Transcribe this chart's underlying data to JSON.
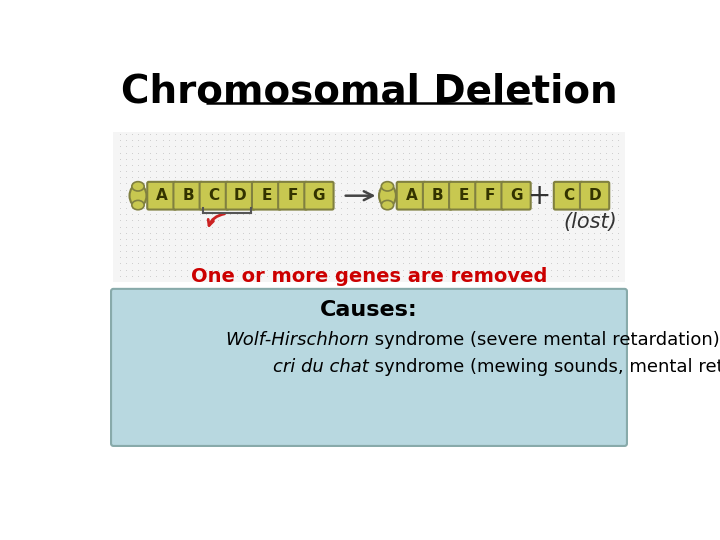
{
  "title": "Chromosomal Deletion",
  "title_fontsize": 28,
  "title_color": "#000000",
  "background_color": "#ffffff",
  "gene_fill": "#c8c850",
  "gene_border": "#808040",
  "gene_letters_before": [
    "A",
    "B",
    "C",
    "D",
    "E",
    "F",
    "G"
  ],
  "gene_letters_after": [
    "A",
    "B",
    "E",
    "F",
    "G"
  ],
  "gene_letters_cd": [
    "C",
    "D"
  ],
  "subtitle_text": "One or more genes are removed",
  "subtitle_color": "#cc0000",
  "subtitle_fontsize": 14,
  "causes_bg": "#b8d8e0",
  "causes_border": "#88aaaa",
  "causes_title": "Causes:",
  "causes_title_fontsize": 16,
  "causes_line1_italic": "Wolf-Hirschhorn",
  "causes_line1_rest": " syndrome (severe mental retardation)",
  "causes_line2_italic": "cri du chat",
  "causes_line2_rest": " syndrome (mewing sounds, mental retardation)",
  "causes_fontsize": 13,
  "lost_text": "(lost)",
  "plus_text": "+",
  "arrow_color": "#444444",
  "dot_color": "#c8c8c8",
  "dot_bg": "#f5f5f5"
}
